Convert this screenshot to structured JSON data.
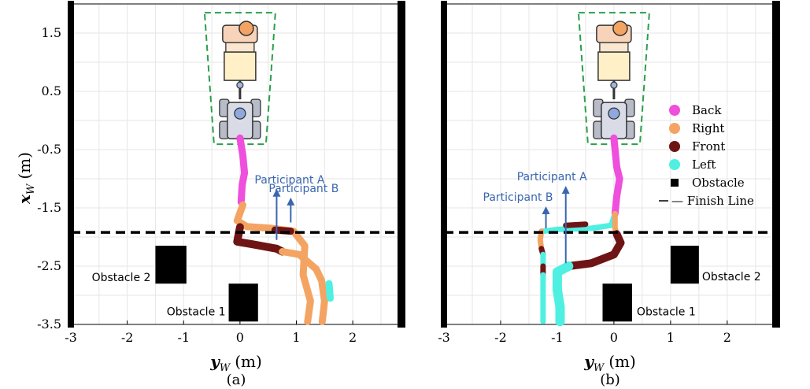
{
  "figure": {
    "ylabel_symbol": "x",
    "ylabel_sub": "W",
    "ylabel_unit": "(m)",
    "xlabel_symbol": "y",
    "xlabel_sub": "W",
    "xlabel_unit": "(m)"
  },
  "legend": {
    "items": [
      {
        "label": "Back",
        "color": "#ee4fdc",
        "marker": "dot"
      },
      {
        "label": "Right",
        "color": "#f4a462",
        "marker": "dot"
      },
      {
        "label": "Front",
        "color": "#6e1414",
        "marker": "dot"
      },
      {
        "label": "Left",
        "color": "#4ff0e2",
        "marker": "dot"
      },
      {
        "label": "Obstacle",
        "color": "#000000",
        "marker": "square"
      },
      {
        "label": "— Finish Line",
        "color": "#000000",
        "marker": "dash"
      }
    ]
  },
  "chart_data": [
    {
      "type": "scatter",
      "panel_label": "(a)",
      "xlim": [
        -3,
        2.85
      ],
      "ylim": [
        -3.5,
        2
      ],
      "x_ticks": [
        -3,
        -2,
        -1,
        0,
        1,
        2
      ],
      "x_tick_labels": [
        "-3",
        "-2",
        "-1",
        "0",
        "1",
        "2"
      ],
      "y_ticks": [
        1.5,
        0.5,
        -0.5,
        -1.5,
        -2.5,
        -3.5
      ],
      "y_tick_labels": [
        "1.5",
        "0.5",
        "-0.5",
        "-1.5",
        "-2.5",
        "-3.5"
      ],
      "grid": true,
      "finish_line_x": -1.92,
      "obstacles": [
        {
          "label": "Obstacle 2",
          "y": [
            -1.5,
            -0.95
          ],
          "x": [
            -2.8,
            -2.15
          ]
        },
        {
          "label": "Obstacle 1",
          "y": [
            -0.2,
            0.32
          ],
          "x": [
            -3.45,
            -2.8
          ]
        }
      ],
      "annotations": [
        {
          "label": "Participant A",
          "y": 0.65,
          "x_from": -2.05,
          "x_to": -1.2
        },
        {
          "label": "Participant B",
          "y": 0.9,
          "x_from": -1.75,
          "x_to": -1.35
        }
      ],
      "series": [
        {
          "name": "Back",
          "width": 9,
          "points": [
            [
              0.0,
              -0.3
            ],
            [
              0.05,
              -0.6
            ],
            [
              0.08,
              -0.9
            ],
            [
              0.04,
              -1.1
            ],
            [
              0.02,
              -1.4
            ]
          ]
        },
        {
          "name": "Right",
          "width": 9,
          "points": [
            [
              0.05,
              -1.45
            ],
            [
              -0.05,
              -1.72
            ],
            [
              0.12,
              -1.82
            ],
            [
              0.55,
              -1.85
            ],
            [
              0.95,
              -1.9
            ],
            [
              1.15,
              -2.15
            ],
            [
              1.12,
              -2.65
            ],
            [
              1.25,
              -3.1
            ],
            [
              1.2,
              -3.45
            ]
          ]
        },
        {
          "name": "Front",
          "width": 10,
          "points": [
            [
              0.0,
              -1.83
            ],
            [
              -0.05,
              -2.08
            ],
            [
              0.2,
              -2.12
            ],
            [
              0.65,
              -2.2
            ],
            [
              0.75,
              -2.25
            ]
          ]
        },
        {
          "name": "Front",
          "width": 9,
          "points": [
            [
              0.62,
              -1.88
            ],
            [
              0.9,
              -1.9
            ]
          ]
        },
        {
          "name": "Right",
          "width": 9,
          "points": [
            [
              0.75,
              -2.25
            ],
            [
              1.05,
              -2.3
            ],
            [
              1.35,
              -2.55
            ],
            [
              1.45,
              -2.75
            ],
            [
              1.5,
              -3.1
            ],
            [
              1.46,
              -3.45
            ]
          ]
        },
        {
          "name": "Left",
          "width": 9,
          "points": [
            [
              1.58,
              -2.8
            ],
            [
              1.6,
              -3.05
            ]
          ]
        }
      ]
    },
    {
      "type": "scatter",
      "panel_label": "(b)",
      "xlim": [
        -3,
        2.85
      ],
      "ylim": [
        -3.5,
        2
      ],
      "x_ticks": [
        -3,
        -2,
        -1,
        0,
        1,
        2
      ],
      "x_tick_labels": [
        "-3",
        "-2",
        "-1",
        "0",
        "1",
        "2"
      ],
      "y_ticks": [],
      "y_tick_labels": [],
      "grid": true,
      "finish_line_x": -1.92,
      "obstacles": [
        {
          "label": "Obstacle 2",
          "y": [
            1.0,
            1.5
          ],
          "x": [
            -2.8,
            -2.15
          ]
        },
        {
          "label": "Obstacle 1",
          "y": [
            -0.2,
            0.32
          ],
          "x": [
            -3.45,
            -2.8
          ]
        }
      ],
      "annotations": [
        {
          "label": "Participant A",
          "y": -0.85,
          "x_from": -2.45,
          "x_to": -1.15
        },
        {
          "label": "Participant B",
          "y": -1.2,
          "x_from": -1.85,
          "x_to": -1.5
        }
      ],
      "series": [
        {
          "name": "Back",
          "width": 9,
          "points": [
            [
              0.0,
              -0.3
            ],
            [
              0.05,
              -0.8
            ],
            [
              0.1,
              -1.0
            ],
            [
              0.05,
              -1.3
            ],
            [
              0.02,
              -1.6
            ]
          ]
        },
        {
          "name": "Left",
          "width": 7,
          "points": [
            [
              0.02,
              -1.6
            ],
            [
              -0.05,
              -1.8
            ],
            [
              -0.4,
              -1.85
            ],
            [
              -1.0,
              -1.87
            ],
            [
              -1.25,
              -1.9
            ]
          ]
        },
        {
          "name": "Front",
          "width": 7,
          "points": [
            [
              -0.5,
              -1.78
            ],
            [
              -0.85,
              -1.8
            ]
          ]
        },
        {
          "name": "Right",
          "width": 7,
          "points": [
            [
              -1.28,
              -1.9
            ],
            [
              -1.3,
              -2.05
            ],
            [
              -1.28,
              -2.2
            ]
          ]
        },
        {
          "name": "Front",
          "width": 7,
          "points": [
            [
              -1.28,
              -2.2
            ],
            [
              -1.25,
              -2.3
            ]
          ]
        },
        {
          "name": "Left",
          "width": 7,
          "points": [
            [
              -1.25,
              -2.3
            ],
            [
              -1.25,
              -2.5
            ]
          ]
        },
        {
          "name": "Front",
          "width": 7,
          "points": [
            [
              -1.25,
              -2.5
            ],
            [
              -1.25,
              -2.65
            ]
          ]
        },
        {
          "name": "Left",
          "width": 7,
          "points": [
            [
              -1.25,
              -2.65
            ],
            [
              -1.25,
              -3.45
            ]
          ]
        },
        {
          "name": "Right",
          "width": 7,
          "points": [
            [
              0.02,
              -1.6
            ],
            [
              0.02,
              -1.85
            ],
            [
              0.05,
              -1.95
            ]
          ]
        },
        {
          "name": "Front",
          "width": 10,
          "points": [
            [
              0.05,
              -1.95
            ],
            [
              0.12,
              -2.1
            ],
            [
              0.0,
              -2.3
            ],
            [
              -0.4,
              -2.45
            ],
            [
              -0.8,
              -2.5
            ]
          ]
        },
        {
          "name": "Left",
          "width": 12,
          "points": [
            [
              -0.8,
              -2.5
            ],
            [
              -1.0,
              -2.6
            ],
            [
              -1.0,
              -2.9
            ],
            [
              -0.95,
              -3.2
            ],
            [
              -0.95,
              -3.45
            ]
          ]
        }
      ]
    }
  ]
}
